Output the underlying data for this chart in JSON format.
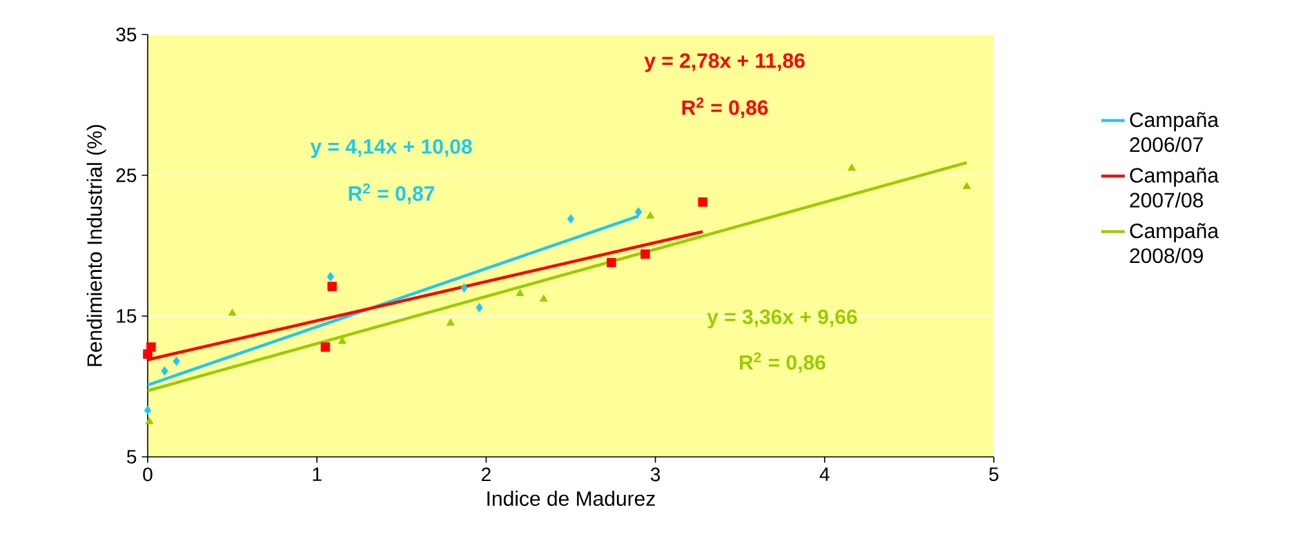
{
  "chart_data": {
    "type": "scatter",
    "xlabel": "Indice de Madurez",
    "ylabel": "Rendimiento Industrial (%)",
    "xlim": [
      0,
      5
    ],
    "ylim": [
      5,
      35
    ],
    "xticks": [
      0,
      1,
      2,
      3,
      4,
      5
    ],
    "yticks": [
      5,
      15,
      25,
      35
    ],
    "grid": "y",
    "legend": "right",
    "series": [
      {
        "marker": "diamond",
        "color": "#1ec8f0",
        "x": [
          0,
          0.1,
          0.17,
          1.08,
          1.87,
          1.96,
          2.5,
          2.9
        ],
        "values": [
          8.3,
          11.1,
          11.8,
          17.8,
          17.0,
          15.6,
          21.9,
          22.4
        ]
      },
      {
        "marker": "square",
        "color": "#ff0000",
        "x": [
          0,
          0.02,
          1.05,
          1.09,
          2.74,
          2.94,
          3.28
        ],
        "values": [
          12.3,
          12.8,
          12.8,
          17.1,
          18.8,
          19.4,
          23.1
        ]
      },
      {
        "marker": "triangle",
        "color": "#99cc00",
        "x": [
          0.01,
          0.5,
          1.15,
          1.79,
          2.2,
          2.34,
          2.97,
          4.16,
          4.84
        ],
        "values": [
          7.5,
          15.2,
          13.2,
          14.5,
          16.6,
          16.2,
          22.1,
          25.5,
          24.2
        ]
      },
      {
        "type": "line",
        "name": "Campaña 2006/07",
        "color": "#1ec8f0",
        "x": [
          0,
          2.9
        ],
        "values": [
          10.1,
          22.1
        ]
      },
      {
        "type": "line",
        "name": "Campaña 2007/08",
        "color": "#ff0000",
        "x": [
          0,
          3.28
        ],
        "values": [
          11.9,
          21.0
        ]
      },
      {
        "type": "line",
        "name": "Campaña 2008/09",
        "color": "#99cc00",
        "x": [
          0,
          4.84
        ],
        "values": [
          9.7,
          25.9
        ]
      }
    ],
    "annotations": [
      "y = 4,14x + 10,08",
      "R$^{2}$ = 0,87",
      "y = 2,78x + 11,86",
      "R$^{2}$ = 0,86",
      "y = 3,36x + 9,66",
      "R$^{2}$ = 0,86"
    ]
  }
}
